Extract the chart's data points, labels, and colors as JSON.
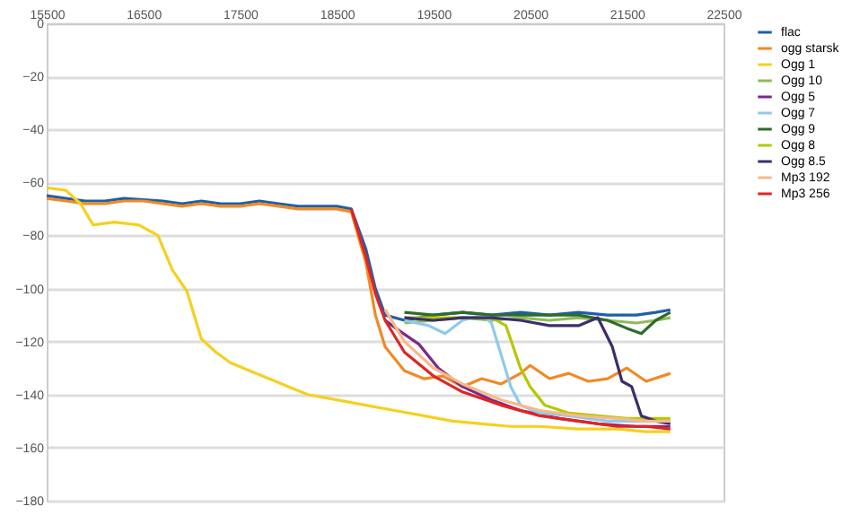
{
  "chart_data": {
    "type": "line",
    "xlim": [
      15500,
      22500
    ],
    "xticks": [
      15500,
      16500,
      17500,
      18500,
      19500,
      20500,
      21500,
      22500
    ],
    "ylim": [
      -180,
      0
    ],
    "yticks": [
      0,
      -20,
      -40,
      -60,
      -80,
      -100,
      -120,
      -140,
      -160,
      -180
    ],
    "grid": "y",
    "legend": "right",
    "line_style": "solid",
    "series": [
      {
        "name": "flac",
        "color": "#1f5fa8",
        "x": [
          15500,
          15700,
          15900,
          16100,
          16300,
          16500,
          16700,
          16900,
          17100,
          17300,
          17500,
          17700,
          17900,
          18100,
          18300,
          18500,
          18650,
          18800,
          18900,
          19000,
          19200,
          19500,
          19800,
          20100,
          20400,
          20700,
          21000,
          21300,
          21600,
          21800,
          21950
        ],
        "values": [
          -65,
          -66,
          -67,
          -67,
          -66,
          -66.5,
          -67,
          -68,
          -67,
          -68,
          -68,
          -67,
          -68,
          -69,
          -69,
          -69,
          -70,
          -85,
          -100,
          -110,
          -112,
          -110,
          -109,
          -110,
          -109,
          -110,
          -109,
          -110,
          -110,
          -109,
          -108
        ]
      },
      {
        "name": "ogg starsk",
        "color": "#f08a24",
        "x": [
          15500,
          15700,
          15900,
          16100,
          16300,
          16500,
          16700,
          16900,
          17100,
          17300,
          17500,
          17700,
          17900,
          18100,
          18300,
          18500,
          18650,
          18800,
          18900,
          19000,
          19200,
          19400,
          19600,
          19800,
          20000,
          20200,
          20400,
          20500,
          20700,
          20900,
          21100,
          21300,
          21500,
          21700,
          21950
        ],
        "values": [
          -66,
          -67,
          -68,
          -68,
          -67,
          -67,
          -68,
          -69,
          -68,
          -69,
          -69,
          -68,
          -69,
          -70,
          -70,
          -70,
          -71,
          -90,
          -110,
          -122,
          -131,
          -134,
          -133,
          -137,
          -134,
          -136,
          -132,
          -129,
          -134,
          -132,
          -135,
          -134,
          -130,
          -135,
          -132
        ]
      },
      {
        "name": "Ogg 1",
        "color": "#f5d020",
        "x": [
          15500,
          15700,
          15850,
          15980,
          16200,
          16450,
          16650,
          16800,
          16950,
          17100,
          17250,
          17400,
          17600,
          17800,
          18000,
          18200,
          18500,
          18800,
          19100,
          19400,
          19700,
          20000,
          20300,
          20600,
          21000,
          21400,
          21700,
          21950
        ],
        "values": [
          -62,
          -63,
          -68,
          -76,
          -75,
          -76,
          -80,
          -93,
          -101,
          -119,
          -124,
          -128,
          -131,
          -134,
          -137,
          -140,
          -142,
          -144,
          -146,
          -148,
          -150,
          -151,
          -152,
          -152,
          -153,
          -153,
          -154,
          -154
        ]
      },
      {
        "name": "Ogg 10",
        "color": "#8fbc5a",
        "x": [
          19200,
          19500,
          19800,
          20100,
          20400,
          20700,
          21000,
          21300,
          21600,
          21800,
          21950
        ],
        "values": [
          -113,
          -112,
          -111,
          -112,
          -111,
          -112,
          -111,
          -112,
          -113,
          -112,
          -111
        ]
      },
      {
        "name": "Ogg 5",
        "color": "#7b2a8c",
        "x": [
          19000,
          19150,
          19350,
          19550,
          19800,
          20100,
          20400,
          20800,
          21200,
          21600,
          21950
        ],
        "values": [
          -112,
          -116,
          -121,
          -130,
          -137,
          -142,
          -146,
          -149,
          -151,
          -152,
          -152
        ]
      },
      {
        "name": "Ogg 7",
        "color": "#8ecbe8",
        "x": [
          19200,
          19450,
          19620,
          19800,
          20000,
          20100,
          20200,
          20300,
          20400,
          20600,
          20900,
          21300,
          21700,
          21950
        ],
        "values": [
          -112,
          -114,
          -117,
          -112,
          -110,
          -113,
          -125,
          -137,
          -144,
          -147,
          -148,
          -150,
          -150,
          -150
        ]
      },
      {
        "name": "Ogg 9",
        "color": "#2f6b2a",
        "x": [
          19200,
          19500,
          19800,
          20100,
          20400,
          20700,
          21000,
          21300,
          21500,
          21650,
          21800,
          21950
        ],
        "values": [
          -109,
          -110,
          -109,
          -110,
          -110,
          -110,
          -110,
          -112,
          -115,
          -117,
          -112,
          -109
        ]
      },
      {
        "name": "Ogg 8",
        "color": "#b5c800",
        "x": [
          19200,
          19500,
          19800,
          20100,
          20250,
          20400,
          20500,
          20650,
          20900,
          21200,
          21500,
          21950
        ],
        "values": [
          -111,
          -111,
          -111,
          -111,
          -114,
          -130,
          -137,
          -144,
          -147,
          -148,
          -149,
          -149
        ]
      },
      {
        "name": "Ogg 8.5",
        "color": "#3d2d6e",
        "x": [
          19200,
          19500,
          19800,
          20100,
          20400,
          20700,
          21000,
          21200,
          21350,
          21450,
          21550,
          21650,
          21800,
          21950
        ],
        "values": [
          -111,
          -112,
          -111,
          -111,
          -112,
          -114,
          -114,
          -111,
          -122,
          -135,
          -137,
          -148,
          -150,
          -151
        ]
      },
      {
        "name": "Mp3 192",
        "color": "#f7b98a",
        "x": [
          19000,
          19200,
          19500,
          19800,
          20200,
          20600,
          21000,
          21400,
          21700,
          21950
        ],
        "values": [
          -108,
          -120,
          -130,
          -136,
          -142,
          -146,
          -148,
          -149,
          -150,
          -150
        ]
      },
      {
        "name": "Mp3 256",
        "color": "#e02424",
        "x": [
          18650,
          18800,
          18900,
          19000,
          19200,
          19500,
          19800,
          20200,
          20600,
          21000,
          21400,
          21700,
          21950
        ],
        "values": [
          -70,
          -88,
          -102,
          -112,
          -124,
          -133,
          -139,
          -144,
          -148,
          -150,
          -152,
          -152,
          -153
        ]
      }
    ]
  }
}
